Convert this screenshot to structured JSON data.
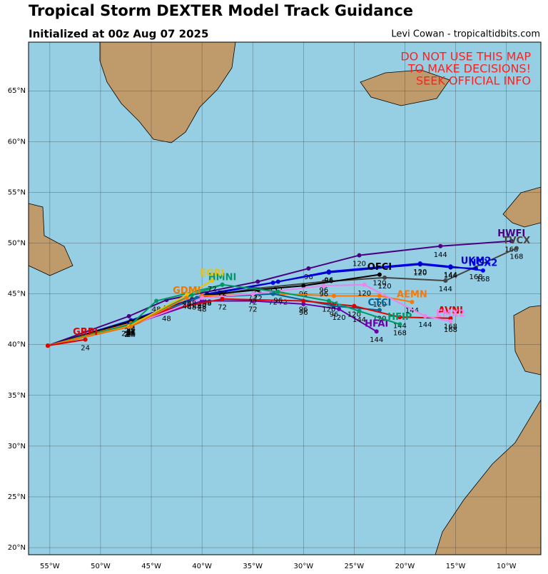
{
  "chart_data": {
    "type": "track_map",
    "title": "Tropical Storm DEXTER Model Track Guidance",
    "subtitle": "Initialized at 00z Aug 07 2025",
    "credit": "Levi Cowan - tropicaltidbits.com",
    "warning": [
      "DO NOT USE THIS MAP",
      "TO MAKE DECISIONS!",
      "SEEK OFFICIAL INFO"
    ],
    "xlim": [
      -57.1,
      -6.6
    ],
    "ylim": [
      19.3,
      69.8
    ],
    "grid": true,
    "xticks": [
      {
        "value": -55,
        "label": "55°W"
      },
      {
        "value": -50,
        "label": "50°W"
      },
      {
        "value": -45,
        "label": "45°W"
      },
      {
        "value": -40,
        "label": "40°W"
      },
      {
        "value": -35,
        "label": "35°W"
      },
      {
        "value": -30,
        "label": "30°W"
      },
      {
        "value": -25,
        "label": "25°W"
      },
      {
        "value": -20,
        "label": "20°W"
      },
      {
        "value": -15,
        "label": "15°W"
      },
      {
        "value": -10,
        "label": "10°W"
      }
    ],
    "yticks": [
      {
        "value": 20,
        "label": "20°N"
      },
      {
        "value": 25,
        "label": "25°N"
      },
      {
        "value": 30,
        "label": "30°N"
      },
      {
        "value": 35,
        "label": "35°N"
      },
      {
        "value": 40,
        "label": "40°N"
      },
      {
        "value": 45,
        "label": "45°N"
      },
      {
        "value": 50,
        "label": "50°N"
      },
      {
        "value": 55,
        "label": "55°N"
      },
      {
        "value": 60,
        "label": "60°N"
      },
      {
        "value": 65,
        "label": "65°N"
      }
    ],
    "series": [
      {
        "name": "HWFI",
        "color": "#4b0082",
        "x": [
          -55.2,
          -47.2,
          -43.5,
          -34.5,
          -29.5,
          -24.5,
          -16.5,
          -9.5
        ],
        "y": [
          39.9,
          42.8,
          44.4,
          46.2,
          47.5,
          48.8,
          49.7,
          50.2
        ],
        "hours": [
          null,
          "24",
          "48",
          "72",
          "96",
          "120",
          "144",
          "168"
        ]
      },
      {
        "name": "TVCX",
        "color": "#444444",
        "x": [
          -55.2,
          -47.5,
          -41,
          -35,
          -28,
          -22,
          -16,
          -9
        ],
        "y": [
          39.9,
          41.9,
          44.5,
          45.5,
          46.2,
          46.6,
          46.3,
          49.5
        ],
        "hours": [
          null,
          "24",
          "48",
          "72",
          "96",
          "120",
          "144",
          "168"
        ]
      },
      {
        "name": "NGX2",
        "color": "#0000ff",
        "x": [
          -55.2,
          -47.2,
          -40,
          -33,
          -27.5,
          -18.5,
          -15.5,
          -12.3
        ],
        "y": [
          39.9,
          42.2,
          44.8,
          46.1,
          47.2,
          48,
          47.7,
          47.3
        ],
        "hours": [
          null,
          "24",
          "48",
          "72",
          "96",
          "120",
          "144",
          "168"
        ]
      },
      {
        "name": "UKM2",
        "color": "#0000cc",
        "x": [
          -55.2,
          -47,
          -39.5,
          -32.5,
          -27.5,
          -18.5,
          -15.5,
          -13
        ],
        "y": [
          39.9,
          42.4,
          45,
          46.2,
          47.1,
          47.9,
          47.6,
          47.5
        ],
        "hours": [
          null,
          "24",
          "48",
          "72",
          "96",
          "120",
          "144",
          "168"
        ]
      },
      {
        "name": "OFCI",
        "color": "#000000",
        "x": [
          -55.2,
          -47,
          -39.5,
          -34.5,
          -30,
          -22.5
        ],
        "y": [
          39.9,
          42.3,
          44.9,
          45.4,
          45.8,
          46.9
        ],
        "hours": [
          null,
          "24",
          "48",
          "72",
          "96",
          "120"
        ]
      },
      {
        "name": "AEMN",
        "color": "#ff7700",
        "x": [
          -55.2,
          -47,
          -40,
          -32,
          -27,
          -22.5,
          -19.3
        ],
        "y": [
          39.9,
          42.1,
          44.8,
          45,
          44.8,
          44.8,
          44.2
        ],
        "hours": [
          null,
          "24",
          "48",
          "72",
          "96",
          "120",
          "144"
        ]
      },
      {
        "name": "CTCI",
        "color": "#006699",
        "x": [
          -55.2,
          -47,
          -40.5,
          -33,
          -27,
          -22.5
        ],
        "y": [
          39.9,
          42,
          44.6,
          45,
          43.8,
          43.4
        ],
        "hours": [
          null,
          "24",
          "48",
          "72",
          "96",
          "120"
        ]
      },
      {
        "name": "HFAI",
        "color": "#6a00a8",
        "x": [
          -55.2,
          -47.2,
          -40,
          -35,
          -30,
          -26.5,
          -22.8
        ],
        "y": [
          39.9,
          41.9,
          44.3,
          44.3,
          44,
          43.5,
          41.3
        ],
        "hours": [
          null,
          "24",
          "48",
          "72",
          "96",
          "120",
          "144"
        ]
      },
      {
        "name": "AVNI",
        "color": "#e00000",
        "x": [
          -55.2,
          -47,
          -43.5,
          -38,
          -30,
          -25,
          -20.5,
          -15.5
        ],
        "y": [
          39.9,
          41.8,
          43.4,
          44.5,
          44.3,
          43.8,
          42.7,
          42.6
        ],
        "hours": [
          null,
          "24",
          "48",
          "72",
          "96",
          "120",
          "144",
          "168"
        ]
      },
      {
        "name": "EMX2",
        "color": "#ee82ee",
        "x": [
          -55.2,
          -47,
          -40,
          -35,
          -28,
          -24,
          -18,
          -15.5
        ],
        "y": [
          39.9,
          41.9,
          44.6,
          45,
          45.8,
          45.9,
          42.8,
          42.3
        ],
        "hours": [
          null,
          "24",
          "48",
          "72",
          "96",
          "120",
          "144",
          "168"
        ]
      },
      {
        "name": "HFIP",
        "color": "#009966",
        "x": [
          -55.2,
          -47,
          -44.5,
          -38,
          -32.5,
          -27.5,
          -24.5,
          -20.5
        ],
        "y": [
          39.9,
          42,
          44.3,
          45.9,
          45.2,
          44.3,
          43.3,
          42
        ],
        "hours": [
          null,
          "24",
          "48",
          "72",
          "96",
          "120",
          "144",
          "168"
        ]
      },
      {
        "name": "HMNI",
        "color": "#009966",
        "x": [
          -55.2,
          -47,
          -41,
          -38
        ],
        "y": [
          39.9,
          42,
          44.9,
          45.9
        ],
        "hours": [
          null,
          "24",
          "48",
          "72"
        ]
      },
      {
        "name": "EGRI",
        "color": "#f0c000",
        "x": [
          -55.2,
          -47.2,
          -41.5,
          -39
        ],
        "y": [
          39.9,
          41.8,
          44.9,
          46.3
        ],
        "hours": [
          null,
          "24",
          "48",
          "72"
        ]
      },
      {
        "name": "GDMI",
        "color": "#ee7700",
        "x": [
          -55.2,
          -47,
          -41.5
        ],
        "y": [
          39.9,
          41.8,
          44.6
        ],
        "hours": [
          null,
          "24",
          "48"
        ]
      },
      {
        "name": "GRPI",
        "color": "#e00000",
        "x": [
          -55.2,
          -51.5
        ],
        "y": [
          39.9,
          40.5
        ],
        "hours": [
          null,
          "24"
        ]
      }
    ]
  }
}
